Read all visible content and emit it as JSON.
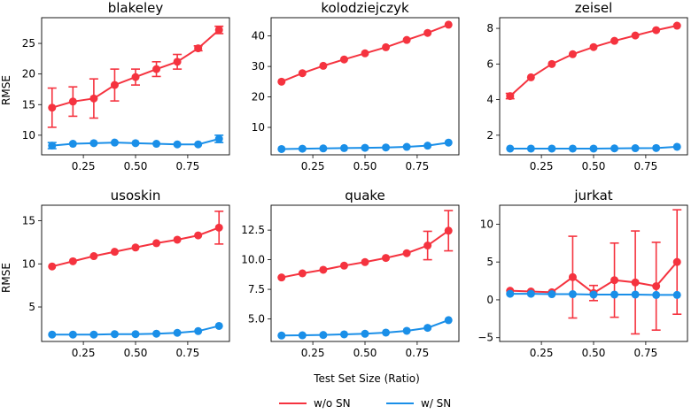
{
  "chart_data": {
    "type": "line",
    "layout": "2x3 grid of subplots",
    "xlabel": "Test Set Size (Ratio)",
    "ylabel": "RMSE",
    "x": [
      0.1,
      0.2,
      0.3,
      0.4,
      0.5,
      0.6,
      0.7,
      0.8,
      0.9
    ],
    "x_ticks": [
      0.25,
      0.5,
      0.75
    ],
    "x_tick_labels": [
      "0.25",
      "0.50",
      "0.75"
    ],
    "xlim": [
      0.05,
      0.95
    ],
    "legend": [
      {
        "name": "w/o SN",
        "color": "#f5333f"
      },
      {
        "name": "w/ SN",
        "color": "#1a8fe8"
      }
    ],
    "legend_position": "bottom-center",
    "subplots": [
      {
        "title": "blakeley",
        "ylim": [
          6.8,
          29.2
        ],
        "y_ticks": [
          10,
          15,
          20,
          25
        ],
        "y_tick_labels": [
          "10",
          "15",
          "20",
          "25"
        ],
        "series": [
          {
            "name": "w/o SN",
            "values": [
              14.5,
              15.5,
              16.0,
              18.2,
              19.5,
              20.8,
              22.0,
              24.2,
              27.2
            ],
            "errors": [
              3.2,
              2.4,
              3.2,
              2.6,
              1.3,
              1.2,
              1.2,
              0.4,
              0.6
            ]
          },
          {
            "name": "w/ SN",
            "values": [
              8.3,
              8.6,
              8.7,
              8.8,
              8.7,
              8.6,
              8.5,
              8.5,
              9.4
            ],
            "errors": [
              0.5,
              0.2,
              0.2,
              0.2,
              0.2,
              0.2,
              0.2,
              0.2,
              0.6
            ]
          }
        ]
      },
      {
        "title": "kolodziejczyk",
        "ylim": [
          1.0,
          46.0
        ],
        "y_ticks": [
          10,
          20,
          30,
          40
        ],
        "y_tick_labels": [
          "10",
          "20",
          "30",
          "40"
        ],
        "series": [
          {
            "name": "w/o SN",
            "values": [
              25.0,
              27.8,
              30.2,
              32.3,
              34.3,
              36.3,
              38.7,
              41.0,
              43.7
            ],
            "errors": [
              0.4,
              0.4,
              0.4,
              0.4,
              0.4,
              0.4,
              0.4,
              0.4,
              0.4
            ]
          },
          {
            "name": "w/ SN",
            "values": [
              2.9,
              3.0,
              3.1,
              3.2,
              3.3,
              3.4,
              3.6,
              4.0,
              5.0
            ],
            "errors": [
              0.2,
              0.2,
              0.2,
              0.2,
              0.2,
              0.2,
              0.2,
              0.2,
              0.4
            ]
          }
        ]
      },
      {
        "title": "zeisel",
        "ylim": [
          0.9,
          8.6
        ],
        "y_ticks": [
          2,
          4,
          6,
          8
        ],
        "y_tick_labels": [
          "2",
          "4",
          "6",
          "8"
        ],
        "series": [
          {
            "name": "w/o SN",
            "values": [
              4.2,
              5.25,
              6.0,
              6.55,
              6.95,
              7.3,
              7.6,
              7.9,
              8.15
            ],
            "errors": [
              0.15,
              0.1,
              0.1,
              0.1,
              0.1,
              0.1,
              0.1,
              0.1,
              0.1
            ]
          },
          {
            "name": "w/ SN",
            "values": [
              1.25,
              1.25,
              1.25,
              1.25,
              1.25,
              1.26,
              1.27,
              1.28,
              1.35
            ],
            "errors": [
              0.05,
              0.05,
              0.05,
              0.05,
              0.05,
              0.05,
              0.05,
              0.05,
              0.05
            ]
          }
        ]
      },
      {
        "title": "usoskin",
        "ylim": [
          1.0,
          16.8
        ],
        "y_ticks": [
          5,
          10,
          15
        ],
        "y_tick_labels": [
          "5",
          "10",
          "15"
        ],
        "series": [
          {
            "name": "w/o SN",
            "values": [
              9.7,
              10.3,
              10.9,
              11.4,
              11.9,
              12.4,
              12.8,
              13.3,
              14.2
            ],
            "errors": [
              0.15,
              0.15,
              0.15,
              0.15,
              0.15,
              0.15,
              0.15,
              0.2,
              1.9
            ]
          },
          {
            "name": "w/ SN",
            "values": [
              1.8,
              1.8,
              1.8,
              1.85,
              1.85,
              1.9,
              2.0,
              2.2,
              2.8
            ],
            "errors": [
              0.1,
              0.1,
              0.1,
              0.1,
              0.1,
              0.1,
              0.1,
              0.1,
              0.2
            ]
          }
        ]
      },
      {
        "title": "quake",
        "ylim": [
          3.1,
          14.6
        ],
        "y_ticks": [
          5.0,
          7.5,
          10.0,
          12.5
        ],
        "y_tick_labels": [
          "5.0",
          "7.5",
          "10.0",
          "12.5"
        ],
        "series": [
          {
            "name": "w/o SN",
            "values": [
              8.5,
              8.85,
              9.15,
              9.5,
              9.8,
              10.15,
              10.55,
              11.2,
              12.45
            ],
            "errors": [
              0.1,
              0.1,
              0.1,
              0.1,
              0.1,
              0.1,
              0.1,
              1.2,
              1.7
            ]
          },
          {
            "name": "w/ SN",
            "values": [
              3.6,
              3.62,
              3.65,
              3.7,
              3.75,
              3.85,
              4.0,
              4.25,
              4.9
            ],
            "errors": [
              0.05,
              0.05,
              0.05,
              0.05,
              0.05,
              0.05,
              0.05,
              0.05,
              0.15
            ]
          }
        ]
      },
      {
        "title": "jurkat",
        "ylim": [
          -5.5,
          12.5
        ],
        "y_ticks": [
          -5,
          0,
          5,
          10
        ],
        "y_tick_labels": [
          "−5",
          "0",
          "5",
          "10"
        ],
        "series": [
          {
            "name": "w/o SN",
            "values": [
              1.2,
              1.1,
              1.0,
              3.0,
              0.9,
              2.6,
              2.3,
              1.8,
              5.0
            ],
            "errors": [
              0.2,
              0.2,
              0.2,
              5.4,
              1.0,
              4.9,
              6.8,
              5.8,
              6.9
            ]
          },
          {
            "name": "w/ SN",
            "values": [
              0.8,
              0.8,
              0.75,
              0.75,
              0.7,
              0.7,
              0.7,
              0.65,
              0.65
            ],
            "errors": [
              0.05,
              0.05,
              0.05,
              0.05,
              0.05,
              0.05,
              0.05,
              0.05,
              0.05
            ]
          }
        ]
      }
    ]
  }
}
